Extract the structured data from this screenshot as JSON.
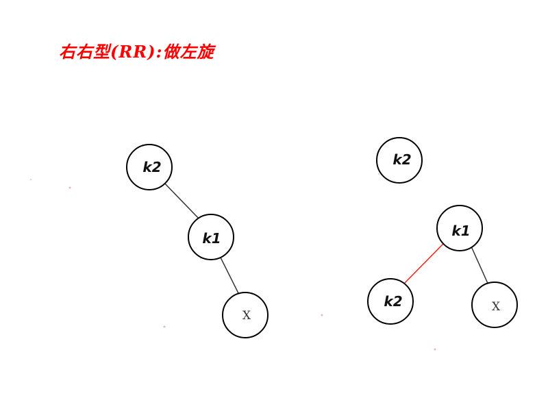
{
  "title": "右右型(RR):做左旋",
  "colors": {
    "title": "#ff0000",
    "highlight_edge": "#ff1a1a",
    "node_stroke": "#000000"
  },
  "before": {
    "nodes": [
      {
        "id": "k2",
        "label": "k2"
      },
      {
        "id": "k1",
        "label": "k1"
      },
      {
        "id": "x",
        "label": "X"
      }
    ],
    "edges": [
      {
        "from": "k2",
        "to": "k1",
        "highlight": false
      },
      {
        "from": "k1",
        "to": "x",
        "highlight": false
      }
    ]
  },
  "after": {
    "nodes": [
      {
        "id": "k2_ghost",
        "label": "k2"
      },
      {
        "id": "k1",
        "label": "k1"
      },
      {
        "id": "k2",
        "label": "k2"
      },
      {
        "id": "x",
        "label": "X"
      }
    ],
    "edges": [
      {
        "from": "k1",
        "to": "k2",
        "highlight": true
      },
      {
        "from": "k1",
        "to": "x",
        "highlight": false
      }
    ]
  }
}
